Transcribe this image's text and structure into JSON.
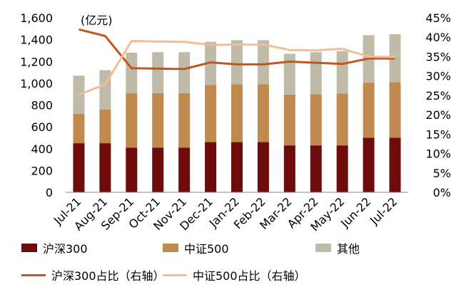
{
  "chart_data": {
    "type": "bar",
    "unit_label": "(亿元)",
    "categories": [
      "Jul-21",
      "Aug-21",
      "Sep-21",
      "Oct-21",
      "Nov-21",
      "Dec-21",
      "Jan-22",
      "Feb-22",
      "Mar-22",
      "Apr-22",
      "May-22",
      "Jun-22",
      "Jul-22"
    ],
    "stacked_series": [
      {
        "name": "沪深300",
        "color": "#6E0B0B",
        "values": [
          450,
          450,
          410,
          410,
          410,
          460,
          460,
          460,
          430,
          430,
          430,
          500,
          500
        ]
      },
      {
        "name": "中证500",
        "color": "#C08A4E",
        "values": [
          270,
          310,
          500,
          500,
          500,
          525,
          530,
          530,
          465,
          470,
          475,
          505,
          510
        ]
      },
      {
        "name": "其他",
        "color": "#BFBBA8",
        "values": [
          350,
          360,
          370,
          375,
          375,
          395,
          405,
          405,
          375,
          385,
          390,
          435,
          440
        ]
      }
    ],
    "line_series": [
      {
        "name": "沪深300占比（右轴）",
        "color": "#C0581E",
        "values": [
          42.0,
          40.3,
          32.0,
          31.9,
          31.8,
          33.5,
          33.0,
          33.0,
          33.7,
          33.4,
          33.1,
          34.5,
          34.5
        ]
      },
      {
        "name": "中证500占比（右轴）",
        "color": "#F2BE9A",
        "values": [
          25.2,
          27.8,
          39.0,
          38.9,
          38.8,
          38.0,
          38.1,
          38.1,
          36.7,
          36.6,
          37.0,
          35.0,
          34.9
        ]
      }
    ],
    "y_left": {
      "min": 0,
      "max": 1600,
      "step": 200,
      "tick_labels": [
        "0",
        "200",
        "400",
        "600",
        "800",
        "1,000",
        "1,200",
        "1,400",
        "1,600"
      ]
    },
    "y_right": {
      "min": 0,
      "max": 45,
      "step": 5,
      "tick_labels": [
        "0%",
        "5%",
        "10%",
        "15%",
        "20%",
        "25%",
        "30%",
        "35%",
        "40%",
        "45%"
      ]
    },
    "grid": false,
    "legend_position": "bottom"
  }
}
